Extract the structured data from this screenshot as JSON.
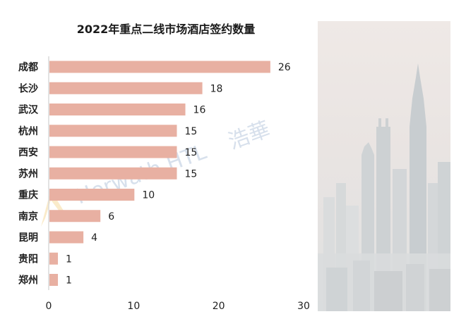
{
  "watermark": {
    "brand": "Horwath HTL",
    "chinese": "浩華"
  },
  "chart_data": {
    "type": "bar",
    "orientation": "horizontal",
    "title": "2022年重点二线市场酒店签约数量",
    "categories": [
      "成都",
      "长沙",
      "武汉",
      "杭州",
      "西安",
      "苏州",
      "重庆",
      "南京",
      "昆明",
      "贵阳",
      "郑州"
    ],
    "values": [
      26,
      18,
      16,
      15,
      15,
      15,
      10,
      6,
      4,
      1,
      1
    ],
    "xlim": [
      0,
      30
    ],
    "xticks": [
      0,
      10,
      20,
      30
    ],
    "grid": false,
    "bar_color": "#e8b0a2",
    "axis_color": "#d9d9d9"
  }
}
